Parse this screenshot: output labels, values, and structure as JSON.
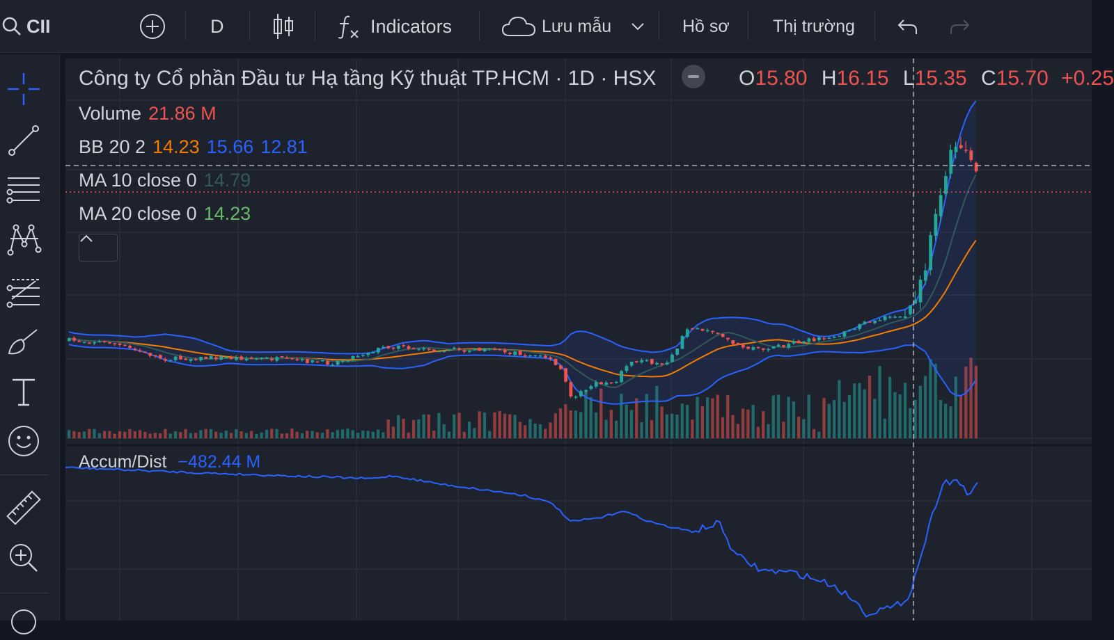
{
  "toolbar": {
    "symbol": "CII",
    "interval": "D",
    "indicators_label": "Indicators",
    "save_label": "Lưu mẫu",
    "profile_label": "Hồ sơ",
    "market_label": "Thị trường"
  },
  "sidebar": {
    "tools": [
      "crosshair-icon",
      "trend-line-icon",
      "horizontal-lines-icon",
      "pattern-icon",
      "fib-icon",
      "brush-icon",
      "text-icon",
      "emoji-icon",
      "ruler-icon",
      "zoom-in-icon",
      "lock-icon"
    ]
  },
  "legend": {
    "title": "Công ty Cổ phần Đầu tư Hạ tầng Kỹ thuật TP.HCM · 1D · HSX",
    "o_key": "O",
    "o_val": "15.80",
    "h_key": "H",
    "h_val": "16.15",
    "l_key": "L",
    "l_val": "15.35",
    "c_key": "C",
    "c_val": "15.70",
    "change": "+0.25",
    "volume_label": "Volume",
    "volume_val": "21.86 M",
    "bb_label": "BB 20 2",
    "bb_basis": "14.23",
    "bb_upper": "15.66",
    "bb_lower": "12.81",
    "ma10_label": "MA 10 close 0",
    "ma10_val": "14.79",
    "ma20_label": "MA 20 close 0",
    "ma20_val": "14.23",
    "ad_label": "Accum/Dist",
    "ad_val": "−482.44 M"
  },
  "colors": {
    "up": "#26a69a",
    "down": "#ef5350",
    "bb": "#2962ff",
    "basis": "#f57c00",
    "ma10": "#26a69a",
    "ma20": "#66bb6a",
    "ad": "#2962ff"
  }
}
